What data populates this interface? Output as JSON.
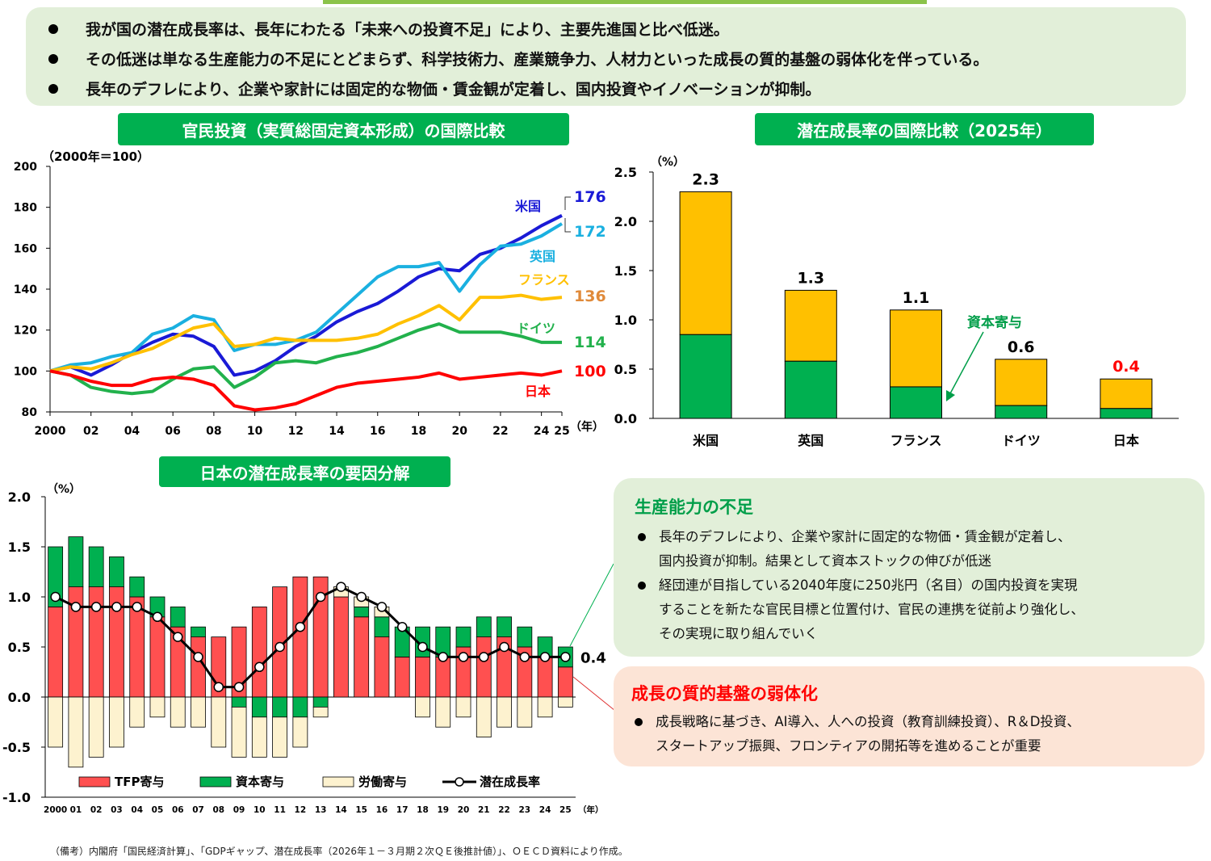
{
  "summary": [
    "我が国の潜在成長率は、長年にわたる「未来への投資不足」により、主要先進国と比べ低迷。",
    "その低迷は単なる生産能力の不足にとどまらず、科学技術力、産業競争力、人材力といった成長の質的基盤の弱体化を伴っている。",
    "長年のデフレにより、企業や家計には固定的な物価・賃金観が定着し、国内投資やイノベーションが抑制。"
  ],
  "colors": {
    "green": "#00b050",
    "red": "#ff5050",
    "cream": "#fdf2cf",
    "yellow": "#ffc000",
    "japan": "#ff0000",
    "usa": "#1a1ad6",
    "uk": "#1ab0e0",
    "france": "#ffc000",
    "germany": "#22b14c",
    "france_label": "#e08a3a",
    "accent_text": "#009e49"
  },
  "chart_data": [
    {
      "type": "line",
      "title": "官民投資（実質総固定資本形成）の国際比較",
      "unit_label": "（2000年＝100）",
      "xlabel": "（年）",
      "ylim": [
        80,
        200
      ],
      "yticks": [
        "80",
        "100",
        "120",
        "140",
        "160",
        "180",
        "200"
      ],
      "xticks": [
        "2000",
        "02",
        "04",
        "06",
        "08",
        "10",
        "12",
        "14",
        "16",
        "18",
        "20",
        "22",
        "24",
        "25"
      ],
      "x": [
        2000,
        2001,
        2002,
        2003,
        2004,
        2005,
        2006,
        2007,
        2008,
        2009,
        2010,
        2011,
        2012,
        2013,
        2014,
        2015,
        2016,
        2017,
        2018,
        2019,
        2020,
        2021,
        2022,
        2023,
        2024,
        2025
      ],
      "series": [
        {
          "name": "米国",
          "end_label": "176",
          "values": [
            100,
            102,
            98,
            103,
            109,
            114,
            118,
            117,
            112,
            98,
            100,
            105,
            112,
            117,
            124,
            129,
            133,
            139,
            146,
            150,
            149,
            157,
            160,
            165,
            171,
            176
          ]
        },
        {
          "name": "英国",
          "end_label": "172",
          "values": [
            100,
            103,
            104,
            107,
            109,
            118,
            121,
            127,
            125,
            110,
            113,
            113,
            115,
            119,
            128,
            137,
            146,
            151,
            151,
            153,
            139,
            152,
            161,
            162,
            166,
            172
          ]
        },
        {
          "name": "フランス",
          "end_label": "136",
          "values": [
            100,
            102,
            101,
            104,
            108,
            111,
            116,
            121,
            123,
            112,
            113,
            116,
            115,
            115,
            115,
            116,
            118,
            123,
            127,
            132,
            125,
            136,
            136,
            137,
            135,
            136
          ]
        },
        {
          "name": "ドイツ",
          "end_label": "114",
          "values": [
            100,
            98,
            92,
            90,
            89,
            90,
            96,
            101,
            102,
            92,
            97,
            104,
            105,
            104,
            107,
            109,
            112,
            116,
            120,
            123,
            119,
            119,
            119,
            117,
            114,
            114
          ]
        },
        {
          "name": "日本",
          "end_label": "100",
          "values": [
            100,
            98,
            95,
            93,
            93,
            96,
            97,
            96,
            93,
            83,
            81,
            82,
            84,
            88,
            92,
            94,
            95,
            96,
            97,
            99,
            96,
            97,
            98,
            99,
            98,
            100
          ]
        }
      ]
    },
    {
      "type": "bar",
      "title": "潜在成長率の国際比較（2025年）",
      "unit_label": "（%）",
      "ylim": [
        0,
        2.5
      ],
      "yticks": [
        "0.0",
        "0.5",
        "1.0",
        "1.5",
        "2.0",
        "2.5"
      ],
      "categories": [
        "米国",
        "英国",
        "フランス",
        "ドイツ",
        "日本"
      ],
      "totals": [
        "2.3",
        "1.3",
        "1.1",
        "0.6",
        "0.4"
      ],
      "total_values": [
        2.3,
        1.3,
        1.1,
        0.6,
        0.4
      ],
      "capital": [
        0.85,
        0.58,
        0.32,
        0.13,
        0.1
      ],
      "annotation": "資本寄与"
    },
    {
      "type": "bar",
      "title": "日本の潜在成長率の要因分解",
      "unit_label": "（%）",
      "xlabel": "（年）",
      "ylim": [
        -1.0,
        2.0
      ],
      "yticks": [
        "-1.0",
        "-0.5",
        "0.0",
        "0.5",
        "1.0",
        "1.5",
        "2.0"
      ],
      "categories": [
        "2000",
        "01",
        "02",
        "03",
        "04",
        "05",
        "06",
        "07",
        "08",
        "09",
        "10",
        "11",
        "12",
        "13",
        "14",
        "15",
        "16",
        "17",
        "18",
        "19",
        "20",
        "21",
        "22",
        "23",
        "24",
        "25"
      ],
      "series": [
        {
          "name": "TFP寄与",
          "values": [
            0.9,
            1.1,
            1.1,
            1.1,
            1.0,
            0.8,
            0.7,
            0.6,
            0.6,
            0.7,
            0.9,
            1.1,
            1.2,
            1.2,
            1.0,
            0.8,
            0.6,
            0.4,
            0.4,
            0.4,
            0.5,
            0.6,
            0.6,
            0.5,
            0.4,
            0.3
          ]
        },
        {
          "name": "資本寄与",
          "values": [
            0.6,
            0.5,
            0.4,
            0.3,
            0.2,
            0.2,
            0.2,
            0.1,
            0.0,
            -0.1,
            -0.2,
            -0.2,
            -0.2,
            -0.1,
            0.0,
            0.1,
            0.2,
            0.3,
            0.3,
            0.3,
            0.2,
            0.2,
            0.2,
            0.2,
            0.2,
            0.2
          ]
        },
        {
          "name": "労働寄与",
          "values": [
            -0.5,
            -0.7,
            -0.6,
            -0.5,
            -0.3,
            -0.2,
            -0.3,
            -0.3,
            -0.5,
            -0.5,
            -0.4,
            -0.4,
            -0.3,
            -0.1,
            0.1,
            0.1,
            0.1,
            0.0,
            -0.2,
            -0.3,
            -0.2,
            -0.4,
            -0.3,
            -0.3,
            -0.2,
            -0.1
          ]
        },
        {
          "name": "潜在成長率",
          "values": [
            1.0,
            0.9,
            0.9,
            0.9,
            0.9,
            0.8,
            0.6,
            0.4,
            0.1,
            0.1,
            0.3,
            0.5,
            0.7,
            1.0,
            1.1,
            1.0,
            0.9,
            0.7,
            0.5,
            0.4,
            0.4,
            0.4,
            0.5,
            0.4,
            0.4,
            0.4
          ]
        }
      ],
      "end_label": "0.4"
    }
  ],
  "box_supply": {
    "heading": "生産能力の不足",
    "bullets": [
      [
        "長年のデフレにより、企業や家計に固定的な物価・賃金観が定着し、",
        "国内投資が抑制。結果として資本ストックの伸びが低迷"
      ],
      [
        "経団連が目指している2040年度に250兆円（名目）の国内投資を実現",
        "することを新たな官民目標と位置付け、官民の連携を従前より強化し、",
        "その実現に取り組んでいく"
      ]
    ]
  },
  "box_quality": {
    "heading": "成長の質的基盤の弱体化",
    "bullets": [
      [
        "成長戦略に基づき、AI導入、人への投資（教育訓練投資）、R＆D投資、",
        "スタートアップ振興、フロンティアの開拓等を進めることが重要"
      ]
    ]
  },
  "note": "（備考）内閣府「国民経済計算」、「GDPギャップ、潜在成長率（2026年１－３月期２次ＱＥ後推計値）」、ＯＥＣＤ資料により作成。"
}
